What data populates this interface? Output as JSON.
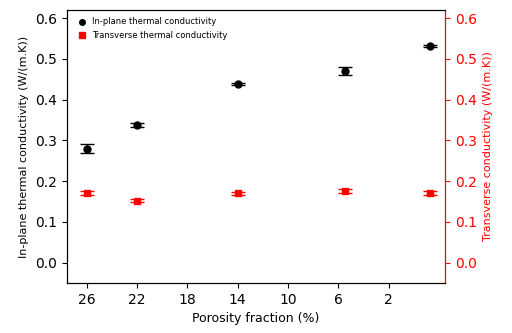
{
  "chart_data": {
    "type": "scatter",
    "x_label": "Porosity fraction (%)",
    "y_label": "In-plane thermal conductivity (W/(m.K))",
    "y2_label": "Transverse conductivity (W/(m.K))",
    "x": [
      26,
      22,
      14,
      5.5,
      -1.3
    ],
    "xlim": [
      27.6,
      -2.5
    ],
    "xticks": [
      26,
      22,
      18,
      14,
      10,
      6,
      2
    ],
    "ylim": [
      -0.05,
      0.62
    ],
    "yticks": [
      0.0,
      0.1,
      0.2,
      0.3,
      0.4,
      0.5,
      0.6
    ],
    "y2lim": [
      -0.05,
      0.62
    ],
    "y2ticks": [
      0.0,
      0.1,
      0.2,
      0.3,
      0.4,
      0.5,
      0.6
    ],
    "legend": "upper left",
    "grid": false,
    "series": [
      {
        "name": "In-plane thermal conductivity",
        "color": "#000000",
        "marker": "circle",
        "values": [
          0.28,
          0.338,
          0.438,
          0.47,
          0.532
        ],
        "errors": [
          0.01,
          0.005,
          0.003,
          0.01,
          0.003
        ]
      },
      {
        "name": "Transverse thermal conductivity",
        "color": "#ff0000",
        "marker": "square",
        "axis": "y2",
        "values": [
          0.171,
          0.152,
          0.17,
          0.175,
          0.17
        ],
        "errors": [
          0.005,
          0.004,
          0.004,
          0.005,
          0.005
        ]
      }
    ]
  }
}
